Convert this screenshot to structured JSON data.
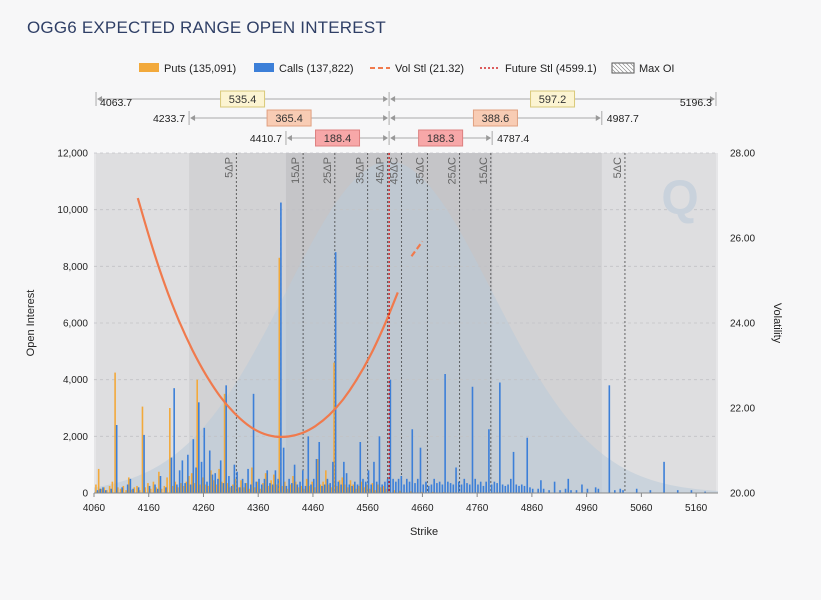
{
  "title": "OGG6 EXPECTED RANGE OPEN INTEREST",
  "colors": {
    "puts": "#f2a93b",
    "calls": "#3c7fd8",
    "vol": "#f07a4d",
    "future": "#cc0000",
    "band_outer": "#d7d7d9",
    "band_mid": "#c8c8cb",
    "band_inner": "#b9b9bd",
    "dist": "#b9cad9",
    "range_small": "#f7a7a8",
    "range_mid": "#f8ccb4",
    "range_large": "#fcf4d2"
  },
  "legend": [
    {
      "key": "puts",
      "label": "Puts (135,091)"
    },
    {
      "key": "calls",
      "label": "Calls (137,822)"
    },
    {
      "key": "vol",
      "label": "Vol Stl (21.32)"
    },
    {
      "key": "future",
      "label": "Future Stl (4599.1)"
    },
    {
      "key": "maxoi",
      "label": "Max OI"
    }
  ],
  "ranges": [
    {
      "low": "4063.7",
      "high": "5196.3",
      "lo": 4063.7,
      "hi": 5196.3,
      "down": "535.4",
      "up": "597.2",
      "style": "large"
    },
    {
      "low": "4233.7",
      "high": "4987.7",
      "lo": 4233.7,
      "hi": 4987.7,
      "down": "365.4",
      "up": "388.6",
      "style": "mid"
    },
    {
      "low": "4410.7",
      "high": "4787.4",
      "lo": 4410.7,
      "hi": 4787.4,
      "down": "188.4",
      "up": "188.3",
      "style": "small"
    }
  ],
  "deltas": [
    {
      "label": "5ΔP",
      "strike": 4320
    },
    {
      "label": "15ΔP",
      "strike": 4442
    },
    {
      "label": "25ΔP",
      "strike": 4500
    },
    {
      "label": "35ΔP",
      "strike": 4560
    },
    {
      "label": "45ΔP",
      "strike": 4596
    },
    {
      "label": "45ΔC",
      "strike": 4622
    },
    {
      "label": "35ΔC",
      "strike": 4669
    },
    {
      "label": "25ΔC",
      "strike": 4728
    },
    {
      "label": "15ΔC",
      "strike": 4785
    },
    {
      "label": "5ΔC",
      "strike": 5030
    }
  ],
  "chart_data": {
    "type": "bar",
    "title": "OGG6 EXPECTED RANGE OPEN INTEREST",
    "xlabel": "Strike",
    "ylabel": "Open Interest",
    "y2label": "Volatility",
    "xlim": [
      4060,
      5200
    ],
    "ylim": [
      0,
      12000
    ],
    "y2lim": [
      20,
      28
    ],
    "xticks": [
      "4060",
      "4160",
      "4260",
      "4360",
      "4460",
      "4560",
      "4660",
      "4760",
      "4860",
      "4960",
      "5060",
      "5160"
    ],
    "yticks": [
      "0",
      "2,000",
      "4,000",
      "6,000",
      "8,000",
      "10,000",
      "12,000"
    ],
    "y2ticks": [
      "20.00",
      "22.00",
      "24.00",
      "26.00",
      "28.00"
    ],
    "future_settle": 4599.1,
    "vol_settle": 21.32,
    "max_oi": {
      "puts_strike": 4400,
      "calls_strike": 4400
    },
    "puts": [
      [
        4065,
        300
      ],
      [
        4070,
        850
      ],
      [
        4075,
        150
      ],
      [
        4080,
        200
      ],
      [
        4085,
        100
      ],
      [
        4090,
        250
      ],
      [
        4095,
        400
      ],
      [
        4100,
        4250
      ],
      [
        4105,
        200
      ],
      [
        4110,
        150
      ],
      [
        4115,
        250
      ],
      [
        4120,
        100
      ],
      [
        4125,
        550
      ],
      [
        4130,
        120
      ],
      [
        4135,
        200
      ],
      [
        4140,
        250
      ],
      [
        4145,
        100
      ],
      [
        4150,
        3050
      ],
      [
        4155,
        200
      ],
      [
        4160,
        350
      ],
      [
        4165,
        150
      ],
      [
        4170,
        400
      ],
      [
        4175,
        200
      ],
      [
        4180,
        750
      ],
      [
        4185,
        150
      ],
      [
        4190,
        250
      ],
      [
        4195,
        550
      ],
      [
        4200,
        3000
      ],
      [
        4205,
        250
      ],
      [
        4210,
        400
      ],
      [
        4215,
        200
      ],
      [
        4220,
        350
      ],
      [
        4225,
        250
      ],
      [
        4230,
        400
      ],
      [
        4235,
        600
      ],
      [
        4240,
        700
      ],
      [
        4245,
        350
      ],
      [
        4250,
        4000
      ],
      [
        4255,
        300
      ],
      [
        4260,
        550
      ],
      [
        4265,
        300
      ],
      [
        4270,
        250
      ],
      [
        4275,
        800
      ],
      [
        4280,
        450
      ],
      [
        4285,
        300
      ],
      [
        4290,
        850
      ],
      [
        4295,
        400
      ],
      [
        4300,
        3500
      ],
      [
        4305,
        350
      ],
      [
        4310,
        200
      ],
      [
        4315,
        300
      ],
      [
        4320,
        500
      ],
      [
        4325,
        200
      ],
      [
        4330,
        450
      ],
      [
        4335,
        200
      ],
      [
        4340,
        350
      ],
      [
        4345,
        150
      ],
      [
        4350,
        900
      ],
      [
        4355,
        200
      ],
      [
        4360,
        400
      ],
      [
        4365,
        150
      ],
      [
        4370,
        350
      ],
      [
        4375,
        700
      ],
      [
        4380,
        250
      ],
      [
        4385,
        450
      ],
      [
        4390,
        650
      ],
      [
        4395,
        300
      ],
      [
        4400,
        8300
      ],
      [
        4405,
        250
      ],
      [
        4410,
        400
      ],
      [
        4415,
        150
      ],
      [
        4420,
        300
      ],
      [
        4425,
        600
      ],
      [
        4430,
        400
      ],
      [
        4435,
        200
      ],
      [
        4440,
        250
      ],
      [
        4445,
        150
      ],
      [
        4450,
        500
      ],
      [
        4455,
        250
      ],
      [
        4460,
        400
      ],
      [
        4465,
        200
      ],
      [
        4470,
        1200
      ],
      [
        4475,
        300
      ],
      [
        4480,
        400
      ],
      [
        4485,
        800
      ],
      [
        4490,
        300
      ],
      [
        4495,
        200
      ],
      [
        4500,
        4600
      ],
      [
        4505,
        250
      ],
      [
        4510,
        450
      ],
      [
        4515,
        550
      ],
      [
        4520,
        300
      ],
      [
        4525,
        200
      ],
      [
        4530,
        450
      ],
      [
        4535,
        300
      ],
      [
        4540,
        150
      ],
      [
        4545,
        250
      ],
      [
        4550,
        400
      ],
      [
        4555,
        200
      ],
      [
        4560,
        300
      ],
      [
        4565,
        150
      ],
      [
        4570,
        350
      ],
      [
        4575,
        100
      ],
      [
        4580,
        300
      ],
      [
        4585,
        200
      ],
      [
        4590,
        250
      ],
      [
        4595,
        150
      ],
      [
        4600,
        300
      ],
      [
        4610,
        100
      ],
      [
        4620,
        80
      ],
      [
        4640,
        60
      ],
      [
        4660,
        40
      ],
      [
        4680,
        40
      ],
      [
        4700,
        30
      ],
      [
        4760,
        20
      ],
      [
        4800,
        20
      ]
    ],
    "calls": [
      [
        4065,
        100
      ],
      [
        4070,
        150
      ],
      [
        4075,
        200
      ],
      [
        4080,
        100
      ],
      [
        4090,
        150
      ],
      [
        4100,
        2400
      ],
      [
        4110,
        200
      ],
      [
        4120,
        300
      ],
      [
        4125,
        500
      ],
      [
        4130,
        150
      ],
      [
        4140,
        200
      ],
      [
        4150,
        2050
      ],
      [
        4160,
        250
      ],
      [
        4170,
        300
      ],
      [
        4175,
        150
      ],
      [
        4180,
        600
      ],
      [
        4190,
        200
      ],
      [
        4200,
        1250
      ],
      [
        4205,
        3700
      ],
      [
        4210,
        300
      ],
      [
        4215,
        800
      ],
      [
        4220,
        1150
      ],
      [
        4225,
        350
      ],
      [
        4230,
        1350
      ],
      [
        4235,
        300
      ],
      [
        4240,
        1900
      ],
      [
        4245,
        900
      ],
      [
        4250,
        3200
      ],
      [
        4255,
        1100
      ],
      [
        4260,
        2300
      ],
      [
        4265,
        400
      ],
      [
        4270,
        1500
      ],
      [
        4275,
        650
      ],
      [
        4280,
        700
      ],
      [
        4285,
        500
      ],
      [
        4290,
        1150
      ],
      [
        4295,
        350
      ],
      [
        4300,
        3800
      ],
      [
        4305,
        600
      ],
      [
        4310,
        250
      ],
      [
        4315,
        1000
      ],
      [
        4320,
        750
      ],
      [
        4325,
        200
      ],
      [
        4330,
        500
      ],
      [
        4335,
        350
      ],
      [
        4340,
        850
      ],
      [
        4345,
        300
      ],
      [
        4350,
        3500
      ],
      [
        4355,
        400
      ],
      [
        4360,
        500
      ],
      [
        4365,
        300
      ],
      [
        4370,
        500
      ],
      [
        4375,
        800
      ],
      [
        4380,
        350
      ],
      [
        4385,
        300
      ],
      [
        4390,
        800
      ],
      [
        4395,
        500
      ],
      [
        4400,
        10250
      ],
      [
        4405,
        1600
      ],
      [
        4410,
        250
      ],
      [
        4415,
        500
      ],
      [
        4420,
        350
      ],
      [
        4425,
        1000
      ],
      [
        4430,
        300
      ],
      [
        4435,
        400
      ],
      [
        4440,
        800
      ],
      [
        4445,
        250
      ],
      [
        4450,
        2000
      ],
      [
        4455,
        300
      ],
      [
        4460,
        500
      ],
      [
        4465,
        1200
      ],
      [
        4470,
        1800
      ],
      [
        4475,
        250
      ],
      [
        4480,
        300
      ],
      [
        4485,
        500
      ],
      [
        4490,
        350
      ],
      [
        4495,
        1100
      ],
      [
        4500,
        8500
      ],
      [
        4505,
        400
      ],
      [
        4510,
        300
      ],
      [
        4515,
        1100
      ],
      [
        4520,
        700
      ],
      [
        4525,
        300
      ],
      [
        4530,
        250
      ],
      [
        4535,
        400
      ],
      [
        4540,
        300
      ],
      [
        4545,
        1800
      ],
      [
        4550,
        500
      ],
      [
        4555,
        400
      ],
      [
        4560,
        800
      ],
      [
        4565,
        300
      ],
      [
        4570,
        1100
      ],
      [
        4575,
        400
      ],
      [
        4580,
        2000
      ],
      [
        4585,
        300
      ],
      [
        4590,
        400
      ],
      [
        4595,
        500
      ],
      [
        4600,
        4000
      ],
      [
        4605,
        500
      ],
      [
        4610,
        400
      ],
      [
        4615,
        500
      ],
      [
        4620,
        600
      ],
      [
        4625,
        300
      ],
      [
        4630,
        500
      ],
      [
        4635,
        400
      ],
      [
        4640,
        2250
      ],
      [
        4645,
        350
      ],
      [
        4650,
        500
      ],
      [
        4655,
        1600
      ],
      [
        4660,
        300
      ],
      [
        4665,
        400
      ],
      [
        4670,
        250
      ],
      [
        4675,
        300
      ],
      [
        4680,
        500
      ],
      [
        4685,
        350
      ],
      [
        4690,
        400
      ],
      [
        4695,
        300
      ],
      [
        4700,
        4200
      ],
      [
        4705,
        400
      ],
      [
        4710,
        350
      ],
      [
        4715,
        300
      ],
      [
        4720,
        900
      ],
      [
        4725,
        400
      ],
      [
        4730,
        300
      ],
      [
        4735,
        500
      ],
      [
        4740,
        350
      ],
      [
        4745,
        300
      ],
      [
        4750,
        3750
      ],
      [
        4755,
        500
      ],
      [
        4760,
        300
      ],
      [
        4765,
        400
      ],
      [
        4770,
        250
      ],
      [
        4775,
        400
      ],
      [
        4780,
        2250
      ],
      [
        4785,
        300
      ],
      [
        4790,
        400
      ],
      [
        4795,
        350
      ],
      [
        4800,
        3900
      ],
      [
        4805,
        300
      ],
      [
        4810,
        250
      ],
      [
        4815,
        300
      ],
      [
        4820,
        500
      ],
      [
        4825,
        1450
      ],
      [
        4830,
        300
      ],
      [
        4835,
        250
      ],
      [
        4840,
        300
      ],
      [
        4845,
        250
      ],
      [
        4850,
        1950
      ],
      [
        4855,
        200
      ],
      [
        4860,
        150
      ],
      [
        4870,
        150
      ],
      [
        4875,
        450
      ],
      [
        4880,
        150
      ],
      [
        4890,
        100
      ],
      [
        4900,
        400
      ],
      [
        4910,
        100
      ],
      [
        4920,
        150
      ],
      [
        4925,
        500
      ],
      [
        4930,
        100
      ],
      [
        4940,
        100
      ],
      [
        4950,
        300
      ],
      [
        4960,
        150
      ],
      [
        4975,
        200
      ],
      [
        4980,
        150
      ],
      [
        5000,
        3800
      ],
      [
        5010,
        100
      ],
      [
        5020,
        150
      ],
      [
        5025,
        100
      ],
      [
        5050,
        150
      ],
      [
        5075,
        100
      ],
      [
        5100,
        1100
      ],
      [
        5125,
        100
      ],
      [
        5150,
        100
      ],
      [
        5175,
        50
      ]
    ],
    "vol_curve": [
      [
        4140,
        26.94
      ],
      [
        4165,
        25.85
      ],
      [
        4190,
        24.88
      ],
      [
        4215,
        24.06
      ],
      [
        4240,
        23.36
      ],
      [
        4265,
        22.77
      ],
      [
        4290,
        22.28
      ],
      [
        4315,
        21.9
      ],
      [
        4340,
        21.61
      ],
      [
        4365,
        21.42
      ],
      [
        4390,
        21.33
      ],
      [
        4415,
        21.33
      ],
      [
        4440,
        21.41
      ],
      [
        4465,
        21.58
      ],
      [
        4490,
        21.84
      ],
      [
        4515,
        22.2
      ],
      [
        4540,
        22.67
      ],
      [
        4565,
        23.24
      ],
      [
        4590,
        23.93
      ],
      [
        4615,
        24.72
      ],
      [
        4640,
        25.57
      ],
      [
        4660,
        25.92
      ]
    ],
    "vol_curve_extrapolated_from": 4620,
    "distribution": {
      "mean": 4599.1,
      "sd": 188.4,
      "peak_oi": 11700
    }
  }
}
